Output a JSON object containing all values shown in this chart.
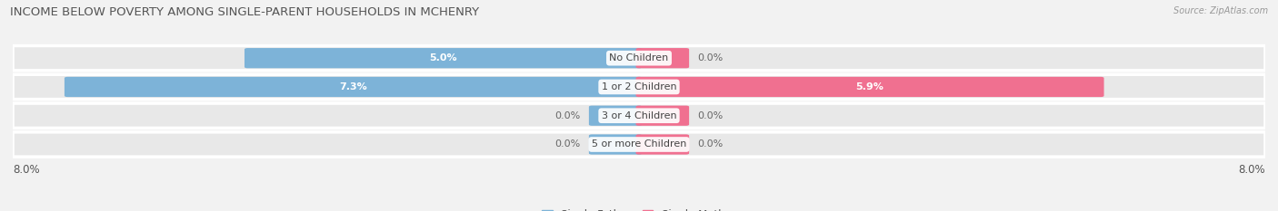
{
  "title": "INCOME BELOW POVERTY AMONG SINGLE-PARENT HOUSEHOLDS IN MCHENRY",
  "source": "Source: ZipAtlas.com",
  "categories": [
    "No Children",
    "1 or 2 Children",
    "3 or 4 Children",
    "5 or more Children"
  ],
  "single_father": [
    5.0,
    7.3,
    0.0,
    0.0
  ],
  "single_mother": [
    0.0,
    5.9,
    0.0,
    0.0
  ],
  "max_val": 8.0,
  "stub_val": 0.6,
  "father_color": "#7db3d8",
  "mother_color": "#f07090",
  "bg_row_color": "#e8e8e8",
  "bg_fig_color": "#f2f2f2",
  "title_fontsize": 9.5,
  "legend_fontsize": 8.5,
  "bar_height": 0.62,
  "x_left_label": "8.0%",
  "x_right_label": "8.0%"
}
